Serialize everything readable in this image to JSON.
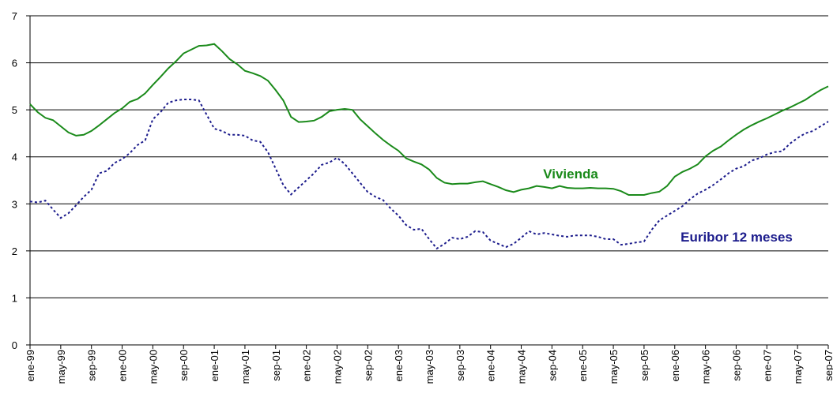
{
  "chart_data": {
    "type": "line",
    "categories": [
      "ene-99",
      null,
      null,
      null,
      "may-99",
      null,
      null,
      null,
      "sep-99",
      null,
      null,
      null,
      "ene-00",
      null,
      null,
      null,
      "may-00",
      null,
      null,
      null,
      "sep-00",
      null,
      null,
      null,
      "ene-01",
      null,
      null,
      null,
      "may-01",
      null,
      null,
      null,
      "sep-01",
      null,
      null,
      null,
      "ene-02",
      null,
      null,
      null,
      "may-02",
      null,
      null,
      null,
      "sep-02",
      null,
      null,
      null,
      "ene-03",
      null,
      null,
      null,
      "may-03",
      null,
      null,
      null,
      "sep-03",
      null,
      null,
      null,
      "ene-04",
      null,
      null,
      null,
      "may-04",
      null,
      null,
      null,
      "sep-04",
      null,
      null,
      null,
      "ene-05",
      null,
      null,
      null,
      "may-05",
      null,
      null,
      null,
      "sep-05",
      null,
      null,
      null,
      "ene-06",
      null,
      null,
      null,
      "may-06",
      null,
      null,
      null,
      "sep-06",
      null,
      null,
      null,
      "ene-07",
      null,
      null,
      null,
      "may-07",
      null,
      null,
      null,
      "sep-07"
    ],
    "series": [
      {
        "name": "Vivienda",
        "color": "#1a8a1a",
        "dashed": false,
        "values": [
          5.12,
          4.95,
          4.83,
          4.78,
          4.65,
          4.52,
          4.45,
          4.47,
          4.55,
          4.67,
          4.8,
          4.93,
          5.03,
          5.17,
          5.23,
          5.35,
          5.53,
          5.7,
          5.88,
          6.03,
          6.2,
          6.28,
          6.36,
          6.37,
          6.4,
          6.25,
          6.08,
          5.97,
          5.83,
          5.78,
          5.72,
          5.62,
          5.42,
          5.2,
          4.85,
          4.74,
          4.75,
          4.77,
          4.85,
          4.97,
          5.0,
          5.02,
          5.0,
          4.8,
          4.65,
          4.5,
          4.36,
          4.24,
          4.13,
          3.97,
          3.9,
          3.84,
          3.73,
          3.55,
          3.45,
          3.42,
          3.43,
          3.43,
          3.46,
          3.48,
          3.42,
          3.36,
          3.29,
          3.25,
          3.3,
          3.33,
          3.38,
          3.36,
          3.33,
          3.38,
          3.34,
          3.33,
          3.33,
          3.34,
          3.33,
          3.33,
          3.32,
          3.27,
          3.19,
          3.19,
          3.19,
          3.23,
          3.26,
          3.38,
          3.58,
          3.68,
          3.75,
          3.84,
          4.01,
          4.13,
          4.22,
          4.35,
          4.47,
          4.58,
          4.67,
          4.75,
          4.82,
          4.9,
          4.98,
          5.05,
          5.13,
          5.21,
          5.32,
          5.42,
          5.5
        ]
      },
      {
        "name": "Euribor 12 meses",
        "color": "#1c1c8c",
        "dashed": true,
        "values": [
          3.05,
          3.03,
          3.07,
          2.88,
          2.7,
          2.8,
          2.97,
          3.15,
          3.3,
          3.65,
          3.7,
          3.87,
          3.95,
          4.08,
          4.25,
          4.35,
          4.8,
          4.95,
          5.15,
          5.2,
          5.22,
          5.22,
          5.2,
          4.9,
          4.6,
          4.55,
          4.47,
          4.47,
          4.45,
          4.35,
          4.32,
          4.1,
          3.75,
          3.4,
          3.2,
          3.35,
          3.5,
          3.65,
          3.83,
          3.88,
          3.98,
          3.85,
          3.65,
          3.45,
          3.25,
          3.15,
          3.08,
          2.9,
          2.75,
          2.55,
          2.45,
          2.47,
          2.25,
          2.05,
          2.15,
          2.28,
          2.25,
          2.3,
          2.42,
          2.4,
          2.22,
          2.15,
          2.08,
          2.15,
          2.28,
          2.42,
          2.35,
          2.38,
          2.35,
          2.32,
          2.3,
          2.33,
          2.33,
          2.33,
          2.3,
          2.25,
          2.25,
          2.13,
          2.15,
          2.18,
          2.2,
          2.45,
          2.65,
          2.75,
          2.85,
          2.95,
          3.1,
          3.22,
          3.3,
          3.4,
          3.52,
          3.65,
          3.75,
          3.8,
          3.92,
          3.97,
          4.05,
          4.1,
          4.12,
          4.28,
          4.4,
          4.5,
          4.55,
          4.65,
          4.75
        ]
      }
    ],
    "ylim": [
      0,
      7
    ],
    "yticks": [
      0,
      1,
      2,
      3,
      4,
      5,
      6,
      7
    ],
    "grid": true
  }
}
